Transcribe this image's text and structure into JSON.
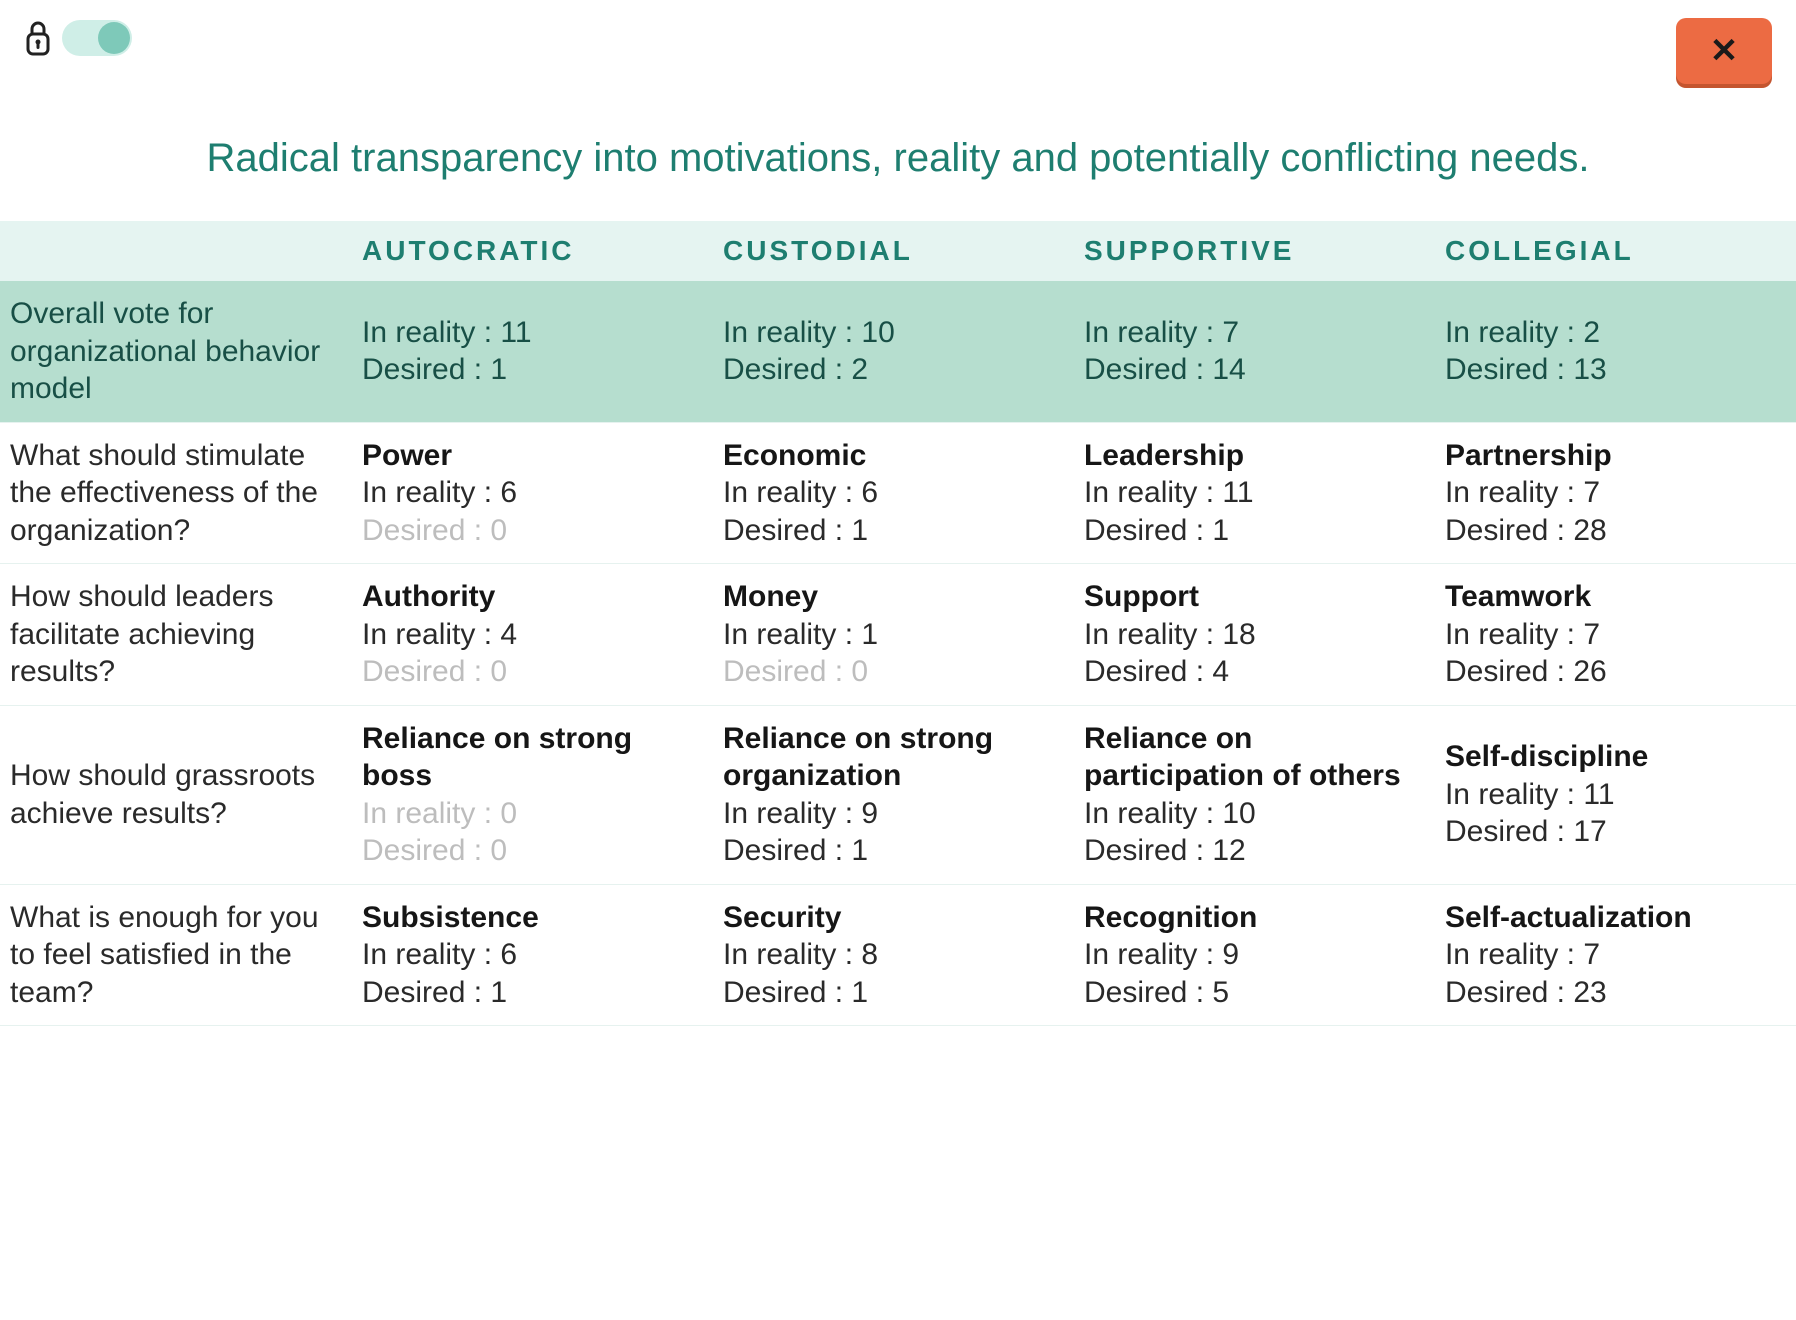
{
  "colors": {
    "accent": "#1e7e70",
    "header_bg": "#e5f4f1",
    "highlight_row_bg": "#b6decf",
    "close_bg": "#ec6b43",
    "close_shadow": "#c4552f",
    "toggle_track": "#cfeee7",
    "toggle_knob": "#7ec9b9",
    "text": "#2a2a2a",
    "dim_text": "#bdbdbd",
    "row_border": "#e6f2ef"
  },
  "topbar": {
    "lock_icon": "lock-icon",
    "toggle_on": true,
    "close_label": "✕"
  },
  "title": "Radical transparency into motivations, reality and potentially conflicting needs.",
  "labels": {
    "reality_prefix": "In reality : ",
    "desired_prefix": "Desired : "
  },
  "columns": [
    "AUTOCRATIC",
    "CUSTODIAL",
    "SUPPORTIVE",
    "COLLEGIAL"
  ],
  "rows": [
    {
      "question": "Overall vote for organizational behavior model",
      "highlight": true,
      "cells": [
        {
          "label": null,
          "reality": 11,
          "desired": 1
        },
        {
          "label": null,
          "reality": 10,
          "desired": 2
        },
        {
          "label": null,
          "reality": 7,
          "desired": 14
        },
        {
          "label": null,
          "reality": 2,
          "desired": 13
        }
      ]
    },
    {
      "question": "What should stimulate the effectiveness of the organization?",
      "cells": [
        {
          "label": "Power",
          "reality": 6,
          "desired": 0
        },
        {
          "label": "Economic",
          "reality": 6,
          "desired": 1
        },
        {
          "label": "Leadership",
          "reality": 11,
          "desired": 1
        },
        {
          "label": "Partnership",
          "reality": 7,
          "desired": 28
        }
      ]
    },
    {
      "question": "How should leaders facilitate achieving results?",
      "cells": [
        {
          "label": "Authority",
          "reality": 4,
          "desired": 0
        },
        {
          "label": "Money",
          "reality": 1,
          "desired": 0
        },
        {
          "label": "Support",
          "reality": 18,
          "desired": 4
        },
        {
          "label": "Teamwork",
          "reality": 7,
          "desired": 26
        }
      ]
    },
    {
      "question": "How should grassroots achieve results?",
      "cells": [
        {
          "label": "Reliance on strong boss",
          "reality": 0,
          "desired": 0
        },
        {
          "label": "Reliance on strong organization",
          "reality": 9,
          "desired": 1
        },
        {
          "label": "Reliance on participation of others",
          "reality": 10,
          "desired": 12
        },
        {
          "label": "Self-discipline",
          "reality": 11,
          "desired": 17
        }
      ]
    },
    {
      "question": "What is enough for you to feel satisfied in the team?",
      "cells": [
        {
          "label": "Subsistence",
          "reality": 6,
          "desired": 1
        },
        {
          "label": "Security",
          "reality": 8,
          "desired": 1
        },
        {
          "label": "Recognition",
          "reality": 9,
          "desired": 5
        },
        {
          "label": "Self-actualization",
          "reality": 7,
          "desired": 23
        }
      ]
    }
  ]
}
